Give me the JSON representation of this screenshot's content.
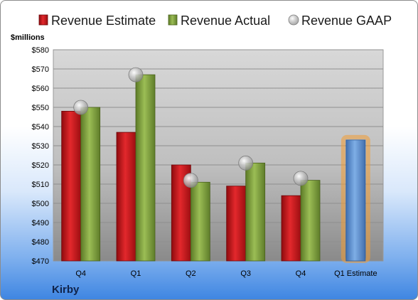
{
  "chart_data": {
    "type": "bar",
    "title": "",
    "xlabel": "",
    "ylabel": "$millions",
    "ylim": [
      470,
      580
    ],
    "ytick_step": 10,
    "ytick_prefix": "$",
    "grid": true,
    "legend_position": "top",
    "categories": [
      "Q4",
      "Q1",
      "Q2",
      "Q3",
      "Q4",
      "Q1 Estimate"
    ],
    "series": [
      {
        "name": "Revenue Estimate",
        "kind": "bar",
        "color": "#d7151a",
        "values": [
          548,
          537,
          520,
          509,
          504,
          null
        ]
      },
      {
        "name": "Revenue Actual",
        "kind": "bar",
        "color": "#8fb04a",
        "values": [
          550,
          567,
          511,
          521,
          512,
          null
        ]
      },
      {
        "name": "Revenue GAAP",
        "kind": "marker",
        "color": "#b4b4b4",
        "values": [
          550,
          567,
          512,
          521,
          513,
          null
        ]
      },
      {
        "name": "",
        "kind": "bar-highlight",
        "color": "#6f9fd8",
        "glow": "#f39c33",
        "values": [
          null,
          null,
          null,
          null,
          null,
          533
        ]
      }
    ]
  },
  "company": "Kirby"
}
